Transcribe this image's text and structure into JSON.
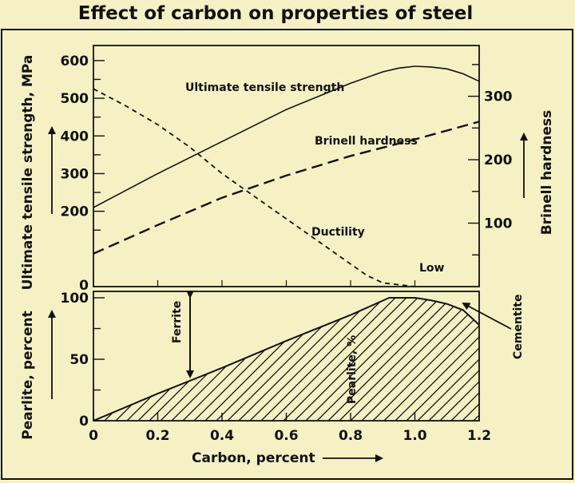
{
  "title": "Effect of carbon on properties of steel",
  "colors": {
    "background": "#f6f1c4",
    "ink": "#111111"
  },
  "chart_data": [
    {
      "type": "line",
      "panel": "upper",
      "xlabel": "Carbon, percent",
      "ylabel": "Ultimate tensile strength, MPa",
      "y2label": "Brinell hardness",
      "xlim": [
        0,
        1.2
      ],
      "ylim": [
        0,
        640
      ],
      "y2lim": [
        0,
        380
      ],
      "yticks": [
        0,
        200,
        300,
        400,
        500,
        600
      ],
      "y2ticks": [
        100,
        200,
        300
      ],
      "grid": false,
      "series": [
        {
          "name": "Ultimate tensile strength",
          "axis": "left",
          "style": "solid",
          "x": [
            0,
            0.2,
            0.4,
            0.6,
            0.8,
            0.9,
            0.95,
            1.0,
            1.05,
            1.1,
            1.15,
            1.2
          ],
          "y": [
            210,
            300,
            385,
            470,
            540,
            570,
            580,
            585,
            583,
            578,
            565,
            545
          ]
        },
        {
          "name": "Brinell hardness",
          "axis": "right",
          "style": "long-dash",
          "x": [
            0,
            0.2,
            0.4,
            0.6,
            0.8,
            1.0,
            1.2
          ],
          "y": [
            52,
            97,
            140,
            175,
            206,
            232,
            260
          ]
        },
        {
          "name": "Ductility",
          "axis": "left",
          "style": "short-dash",
          "x": [
            0,
            0.1,
            0.2,
            0.3,
            0.4,
            0.5,
            0.6,
            0.7,
            0.8,
            0.85,
            0.9,
            1.0
          ],
          "y": [
            525,
            480,
            430,
            370,
            300,
            240,
            180,
            120,
            60,
            30,
            10,
            0
          ]
        }
      ],
      "annotations": [
        "Low"
      ]
    },
    {
      "type": "area",
      "panel": "lower",
      "xlabel": "Carbon, percent",
      "ylabel": "Pearlite, percent",
      "xlim": [
        0,
        1.2
      ],
      "ylim": [
        0,
        100
      ],
      "xticks": [
        0,
        0.2,
        0.4,
        0.6,
        0.8,
        1.0,
        1.2
      ],
      "yticks": [
        0,
        50,
        100
      ],
      "grid": false,
      "series": [
        {
          "name": "Pearlite, %",
          "style": "hatched",
          "x": [
            0,
            0.2,
            0.4,
            0.6,
            0.8,
            0.92,
            1.0,
            1.05,
            1.1,
            1.15,
            1.2
          ],
          "y": [
            0,
            22,
            43,
            65,
            86,
            100,
            100,
            98,
            95,
            90,
            78
          ]
        }
      ],
      "annotations": [
        "Ferrite",
        "Cementite"
      ]
    }
  ]
}
